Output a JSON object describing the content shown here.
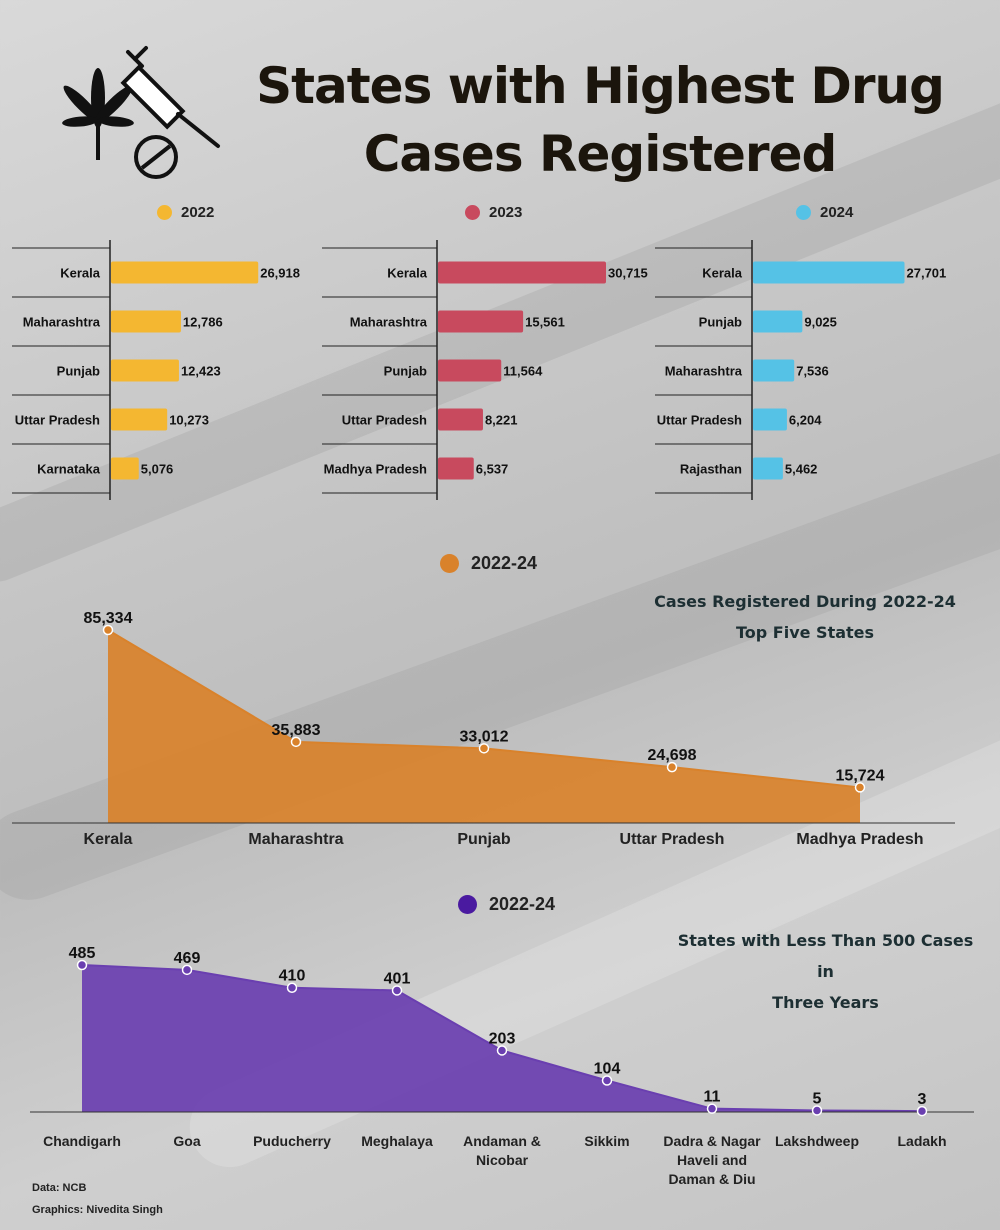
{
  "title": "States with Highest Drug Cases Registered",
  "colors": {
    "y2022": "#f4b731",
    "y2023": "#c84a5e",
    "y2024": "#55c2e6",
    "top5": "#d9822b",
    "under500": "#6a3fb0"
  },
  "icons": [
    "cannabis-leaf-icon",
    "syringe-icon",
    "pill-icon"
  ],
  "chart_data": [
    {
      "type": "bar",
      "series_name": "2022",
      "categories": [
        "Kerala",
        "Maharashtra",
        "Punjab",
        "Uttar Pradesh",
        "Karnataka"
      ],
      "values": [
        26918,
        12786,
        12423,
        10273,
        5076
      ],
      "value_labels": [
        "26,918",
        "12,786",
        "12,423",
        "10,273",
        "5,076"
      ],
      "xlim": [
        0,
        32000
      ]
    },
    {
      "type": "bar",
      "series_name": "2023",
      "categories": [
        "Kerala",
        "Maharashtra",
        "Punjab",
        "Uttar Pradesh",
        "Madhya Pradesh"
      ],
      "values": [
        30715,
        15561,
        11564,
        8221,
        6537
      ],
      "value_labels": [
        "30,715",
        "15,561",
        "11,564",
        "8,221",
        "6,537"
      ],
      "xlim": [
        0,
        32000
      ]
    },
    {
      "type": "bar",
      "series_name": "2024",
      "categories": [
        "Kerala",
        "Punjab",
        "Maharashtra",
        "Uttar Pradesh",
        "Rajasthan"
      ],
      "values": [
        27701,
        9025,
        7536,
        6204,
        5462
      ],
      "value_labels": [
        "27,701",
        "9,025",
        "7,536",
        "6,204",
        "5,462"
      ],
      "xlim": [
        0,
        32000
      ]
    },
    {
      "type": "area",
      "series_name": "2022-24",
      "title": "Cases Registered During 2022-24 Top Five States",
      "title_lines": [
        "Cases Registered During 2022-24",
        "Top Five States"
      ],
      "categories": [
        "Kerala",
        "Maharashtra",
        "Punjab",
        "Uttar Pradesh",
        "Madhya Pradesh"
      ],
      "values": [
        85334,
        35883,
        33012,
        24698,
        15724
      ],
      "value_labels": [
        "85,334",
        "35,883",
        "33,012",
        "24,698",
        "15,724"
      ],
      "ylim": [
        0,
        85334
      ]
    },
    {
      "type": "area",
      "series_name": "2022-24",
      "title": "States with Less Than 500 Cases in Three Years",
      "title_lines": [
        "States with Less Than 500 Cases in",
        "Three Years"
      ],
      "categories": [
        "Chandigarh",
        "Goa",
        "Puducherry",
        "Meghalaya",
        "Andaman & Nicobar",
        "Sikkim",
        "Dadra & Nagar Haveli and Daman & Diu",
        "Lakshdweep",
        "Ladakh"
      ],
      "category_lines": [
        [
          "Chandigarh"
        ],
        [
          "Goa"
        ],
        [
          "Puducherry"
        ],
        [
          "Meghalaya"
        ],
        [
          "Andaman &",
          "Nicobar"
        ],
        [
          "Sikkim"
        ],
        [
          "Dadra & Nagar",
          "Haveli and",
          "Daman & Diu"
        ],
        [
          "Lakshdweep"
        ],
        [
          "Ladakh"
        ]
      ],
      "values": [
        485,
        469,
        410,
        401,
        203,
        104,
        11,
        5,
        3
      ],
      "value_labels": [
        "485",
        "469",
        "410",
        "401",
        "203",
        "104",
        "11",
        "5",
        "3"
      ],
      "ylim": [
        0,
        485
      ]
    }
  ],
  "credits": {
    "data": "Data: NCB",
    "graphics": "Graphics: Nivedita Singh"
  }
}
